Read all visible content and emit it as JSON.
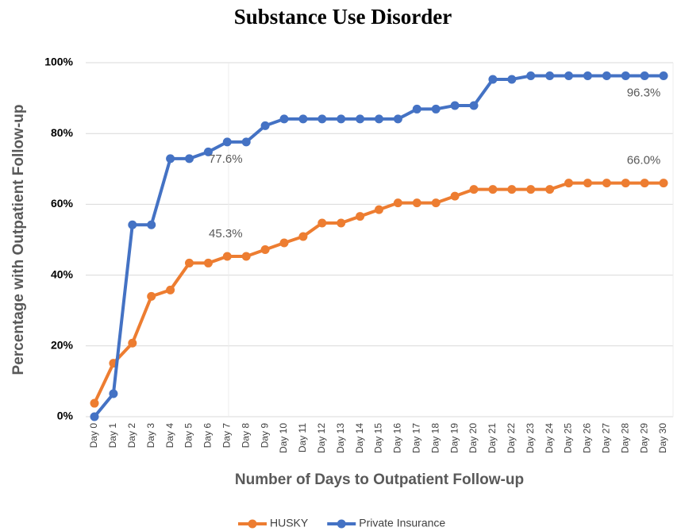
{
  "chart_data": {
    "type": "line",
    "title": "Substance Use Disorder",
    "x_label": "Number of Days to Outpatient Follow-up",
    "y_label": "Percentage with Outpatient Follow-up",
    "categories": [
      "Day 0",
      "Day 1",
      "Day 2",
      "Day 3",
      "Day 4",
      "Day 5",
      "Day 6",
      "Day 7",
      "Day 8",
      "Day 9",
      "Day 10",
      "Day 11",
      "Day 12",
      "Day 13",
      "Day 14",
      "Day 15",
      "Day 16",
      "Day 17",
      "Day 18",
      "Day 19",
      "Day 20",
      "Day 21",
      "Day 22",
      "Day 23",
      "Day 24",
      "Day 25",
      "Day 26",
      "Day 27",
      "Day 28",
      "Day 29",
      "Day 30"
    ],
    "series": [
      {
        "name": "HUSKY",
        "color": "#ed7d31",
        "values": [
          3.8,
          15.1,
          20.8,
          34.0,
          35.8,
          43.4,
          43.4,
          45.3,
          45.3,
          47.2,
          49.1,
          50.9,
          54.7,
          54.7,
          56.6,
          58.5,
          60.4,
          60.4,
          60.4,
          62.3,
          64.2,
          64.2,
          64.2,
          64.2,
          64.2,
          66.0,
          66.0,
          66.0,
          66.0,
          66.0,
          66.0
        ],
        "value_labels": [
          null,
          null,
          null,
          null,
          null,
          null,
          null,
          "45.3%",
          null,
          null,
          null,
          null,
          null,
          null,
          null,
          null,
          null,
          null,
          null,
          null,
          null,
          null,
          null,
          null,
          null,
          null,
          null,
          null,
          null,
          null,
          "66.0%"
        ]
      },
      {
        "name": "Private Insurance",
        "color": "#4472c4",
        "values": [
          0,
          6.5,
          54.2,
          54.2,
          72.9,
          72.9,
          74.8,
          77.6,
          77.6,
          82.2,
          84.1,
          84.1,
          84.1,
          84.1,
          84.1,
          84.1,
          84.1,
          86.9,
          86.9,
          87.9,
          87.9,
          95.3,
          95.3,
          96.3,
          96.3,
          96.3,
          96.3,
          96.3,
          96.3,
          96.3,
          96.3
        ],
        "value_labels": [
          null,
          null,
          null,
          null,
          null,
          null,
          null,
          "77.6%",
          null,
          null,
          null,
          null,
          null,
          null,
          null,
          null,
          null,
          null,
          null,
          null,
          null,
          null,
          null,
          null,
          null,
          null,
          null,
          null,
          null,
          null,
          "96.3%"
        ]
      }
    ],
    "ylim": [
      0,
      100
    ],
    "yticks": [
      {
        "value": 0,
        "label": "0%"
      },
      {
        "value": 20,
        "label": "20%"
      },
      {
        "value": 40,
        "label": "40%"
      },
      {
        "value": 60,
        "label": "60%"
      },
      {
        "value": 80,
        "label": "80%"
      },
      {
        "value": 100,
        "label": "100%"
      }
    ],
    "grid": true,
    "legend": "bottom"
  }
}
